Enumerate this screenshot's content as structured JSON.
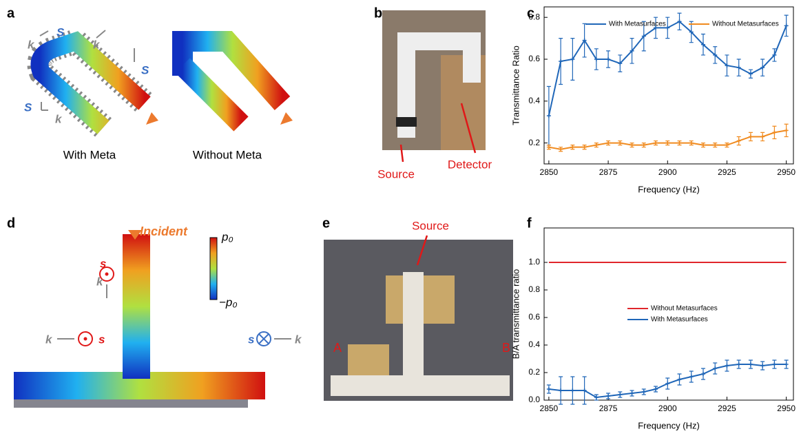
{
  "panels": {
    "a": {
      "label": "a",
      "captions": [
        "With Meta",
        "Without Meta"
      ],
      "wave_labels": [
        "S",
        "k",
        "S",
        "k",
        "S",
        "k"
      ]
    },
    "b": {
      "label": "b",
      "annotations": [
        "Source",
        "Detector"
      ]
    },
    "c": {
      "label": "c"
    },
    "d": {
      "label": "d",
      "incident": "Incident",
      "colorbar": [
        "p₀",
        "−p₀"
      ],
      "wave_labels": [
        "s",
        "k",
        "k",
        "s",
        "s",
        "k"
      ]
    },
    "e": {
      "label": "e",
      "annotations": [
        "Source",
        "A",
        "B"
      ]
    },
    "f": {
      "label": "f"
    }
  },
  "chart_data": [
    {
      "type": "line",
      "xlabel": "Frequency (Hz)",
      "ylabel": "Transmittance Ratio",
      "x": [
        2850,
        2855,
        2860,
        2865,
        2870,
        2875,
        2880,
        2885,
        2890,
        2895,
        2900,
        2905,
        2910,
        2915,
        2920,
        2925,
        2930,
        2935,
        2940,
        2945,
        2950
      ],
      "xlim": [
        2848,
        2953
      ],
      "xticks": [
        2850,
        2875,
        2900,
        2925,
        2950
      ],
      "ylim": [
        0.1,
        0.85
      ],
      "yticks": [
        0.2,
        0.4,
        0.6,
        0.8
      ],
      "legend": "upper center",
      "series": [
        {
          "name": "With Metasurfaces",
          "color": "#1f66b8",
          "markers": true,
          "values": [
            0.33,
            0.59,
            0.6,
            0.69,
            0.6,
            0.6,
            0.58,
            0.64,
            0.71,
            0.75,
            0.75,
            0.78,
            0.73,
            0.67,
            0.62,
            0.57,
            0.56,
            0.53,
            0.56,
            0.62,
            0.76
          ],
          "errors": [
            0.14,
            0.11,
            0.1,
            0.08,
            0.05,
            0.04,
            0.04,
            0.06,
            0.07,
            0.05,
            0.05,
            0.04,
            0.05,
            0.05,
            0.04,
            0.05,
            0.04,
            0.02,
            0.04,
            0.03,
            0.05
          ]
        },
        {
          "name": "Without Metasurfaces",
          "color": "#f08a1e",
          "markers": true,
          "values": [
            0.18,
            0.17,
            0.18,
            0.18,
            0.19,
            0.2,
            0.2,
            0.19,
            0.19,
            0.2,
            0.2,
            0.2,
            0.2,
            0.19,
            0.19,
            0.19,
            0.21,
            0.23,
            0.23,
            0.25,
            0.26
          ],
          "errors": [
            0.01,
            0.01,
            0.01,
            0.01,
            0.01,
            0.01,
            0.01,
            0.01,
            0.01,
            0.01,
            0.01,
            0.01,
            0.01,
            0.01,
            0.01,
            0.01,
            0.02,
            0.02,
            0.02,
            0.03,
            0.03
          ]
        }
      ]
    },
    {
      "type": "line",
      "xlabel": "Frequency (Hz)",
      "ylabel": "B/A transmittance ratio",
      "x": [
        2850,
        2855,
        2860,
        2865,
        2870,
        2875,
        2880,
        2885,
        2890,
        2895,
        2900,
        2905,
        2910,
        2915,
        2920,
        2925,
        2930,
        2935,
        2940,
        2945,
        2950
      ],
      "xlim": [
        2848,
        2953
      ],
      "xticks": [
        2850,
        2875,
        2900,
        2925,
        2950
      ],
      "ylim": [
        0,
        1.25
      ],
      "yticks": [
        {
          "value": 0,
          "label": "0.0"
        },
        0.2,
        0.4,
        0.6,
        0.8,
        {
          "value": 1,
          "label": "1.0"
        }
      ],
      "legend": "center",
      "series": [
        {
          "name": "Without Metasurfaces",
          "color": "#e0262b",
          "markers": false,
          "values": [
            1,
            1,
            1,
            1,
            1,
            1,
            1,
            1,
            1,
            1,
            1,
            1,
            1,
            1,
            1,
            1,
            1,
            1,
            1,
            1,
            1
          ]
        },
        {
          "name": "With Metasurfaces",
          "color": "#1f66b8",
          "markers": true,
          "values": [
            0.08,
            0.07,
            0.07,
            0.07,
            0.02,
            0.03,
            0.04,
            0.05,
            0.06,
            0.08,
            0.12,
            0.15,
            0.17,
            0.19,
            0.23,
            0.25,
            0.26,
            0.26,
            0.25,
            0.26,
            0.26
          ],
          "errors": [
            0.03,
            0.1,
            0.1,
            0.1,
            0.02,
            0.02,
            0.02,
            0.02,
            0.02,
            0.02,
            0.04,
            0.04,
            0.04,
            0.04,
            0.04,
            0.04,
            0.03,
            0.03,
            0.03,
            0.03,
            0.03
          ]
        }
      ]
    }
  ]
}
